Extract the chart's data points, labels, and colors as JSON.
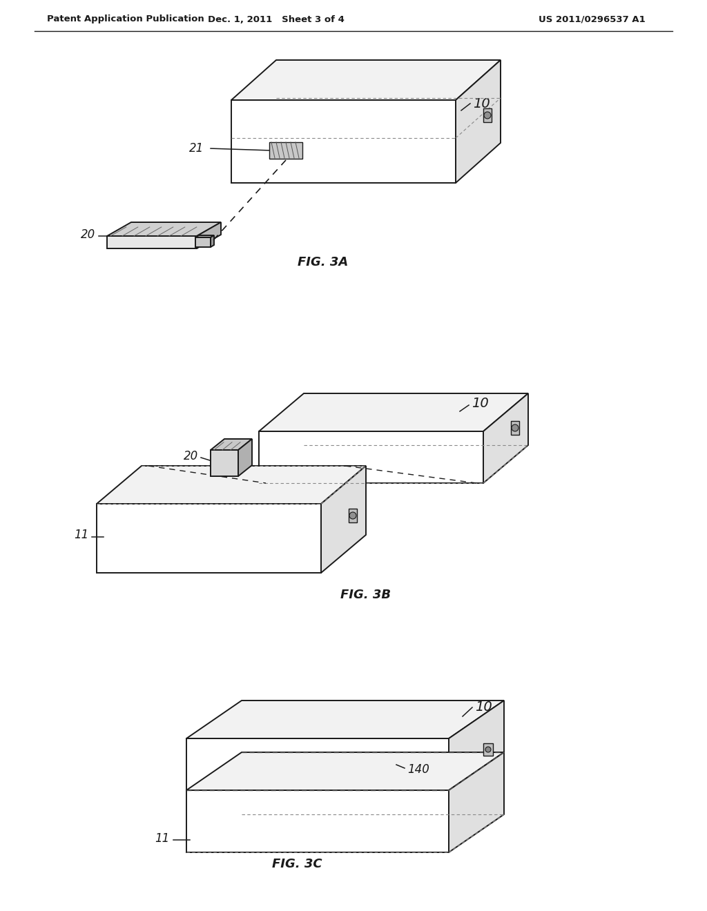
{
  "background_color": "#ffffff",
  "header_left": "Patent Application Publication",
  "header_center": "Dec. 1, 2011   Sheet 3 of 4",
  "header_right": "US 2011/0296537 A1",
  "line_color": "#1a1a1a",
  "fill_white": "#ffffff",
  "fill_top": "#f2f2f2",
  "fill_right": "#e0e0e0",
  "fill_front": "#f8f8f8",
  "fill_mid": "#d8d8d8",
  "fill_dark": "#aaaaaa",
  "fig3a_label": "FIG. 3A",
  "fig3b_label": "FIG. 3B",
  "fig3c_label": "FIG. 3C"
}
